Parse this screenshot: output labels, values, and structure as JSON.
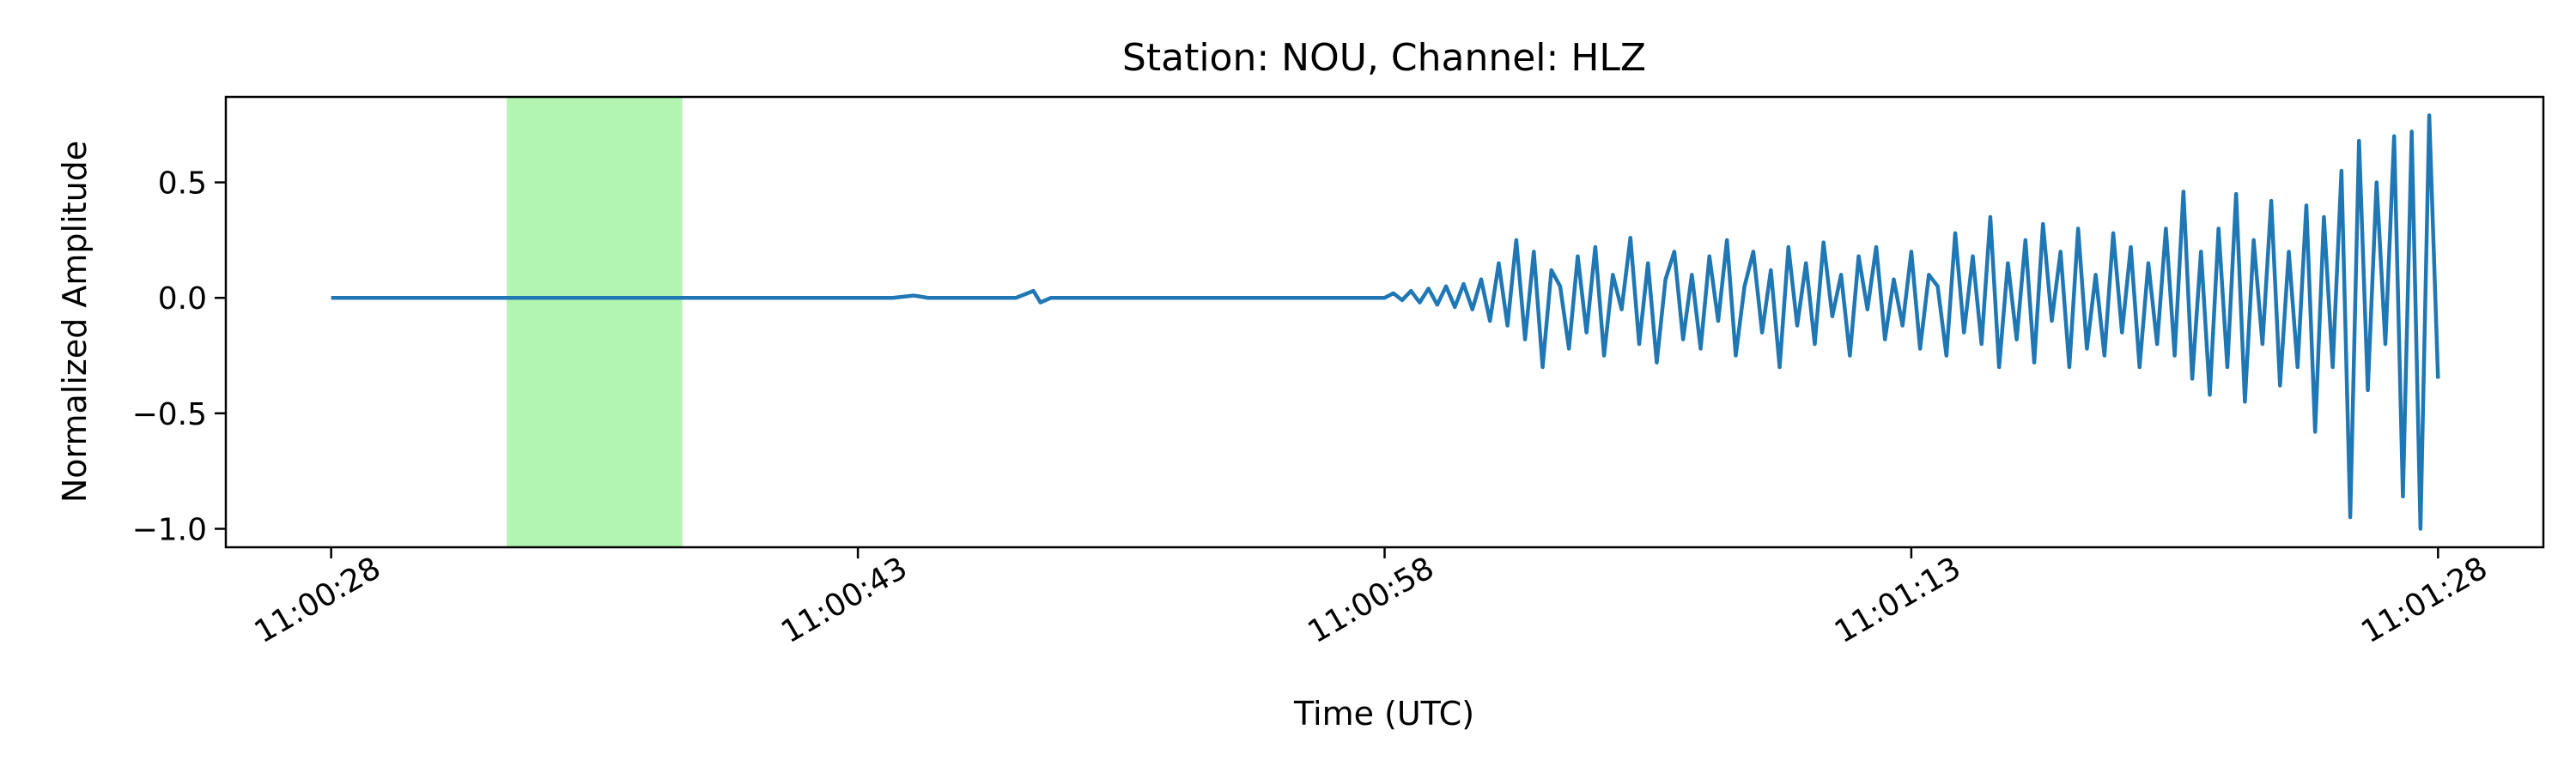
{
  "chart_data": {
    "type": "line",
    "title": "Station: NOU, Channel: HLZ",
    "xlabel": "Time (UTC)",
    "ylabel": "Normalized Amplitude",
    "color": "#1f77b4",
    "xlim": [
      39625,
      39691
    ],
    "ylim": [
      -1.08,
      0.87
    ],
    "xticks": [
      {
        "value": 39628,
        "label": "11:00:28"
      },
      {
        "value": 39643,
        "label": "11:00:43"
      },
      {
        "value": 39658,
        "label": "11:00:58"
      },
      {
        "value": 39673,
        "label": "11:01:13"
      },
      {
        "value": 39688,
        "label": "11:01:28"
      }
    ],
    "yticks": [
      {
        "value": -1.0,
        "label": "−1.0"
      },
      {
        "value": -0.5,
        "label": "−0.5"
      },
      {
        "value": 0.0,
        "label": "0.0"
      },
      {
        "value": 0.5,
        "label": "0.5"
      }
    ],
    "span": {
      "xlim": [
        39633,
        39638
      ],
      "color": "#b2f4b2"
    },
    "x": [
      39628,
      39630,
      39632,
      39634,
      39636,
      39638,
      39640,
      39642,
      39644,
      39644.6,
      39645,
      39646,
      39647.5,
      39648,
      39648.2,
      39648.5,
      39650,
      39652,
      39654,
      39656,
      39657.5,
      39658,
      39658.25,
      39658.5,
      39658.75,
      39659,
      39659.25,
      39659.5,
      39659.75,
      39660,
      39660.25,
      39660.5,
      39660.75,
      39661,
      39661.25,
      39661.5,
      39661.75,
      39662,
      39662.25,
      39662.5,
      39662.75,
      39663,
      39663.25,
      39663.5,
      39663.75,
      39664,
      39664.25,
      39664.5,
      39664.75,
      39665,
      39665.25,
      39665.5,
      39665.75,
      39666,
      39666.25,
      39666.5,
      39666.75,
      39667,
      39667.25,
      39667.5,
      39667.75,
      39668,
      39668.25,
      39668.5,
      39668.75,
      39669,
      39669.25,
      39669.5,
      39669.75,
      39670,
      39670.25,
      39670.5,
      39670.75,
      39671,
      39671.25,
      39671.5,
      39671.75,
      39672,
      39672.25,
      39672.5,
      39672.75,
      39673,
      39673.25,
      39673.5,
      39673.75,
      39674,
      39674.25,
      39674.5,
      39674.75,
      39675,
      39675.25,
      39675.5,
      39675.75,
      39676,
      39676.25,
      39676.5,
      39676.75,
      39677,
      39677.25,
      39677.5,
      39677.75,
      39678,
      39678.25,
      39678.5,
      39678.75,
      39679,
      39679.25,
      39679.5,
      39679.75,
      39680,
      39680.25,
      39680.5,
      39680.75,
      39681,
      39681.25,
      39681.5,
      39681.75,
      39682,
      39682.25,
      39682.5,
      39682.75,
      39683,
      39683.25,
      39683.5,
      39683.75,
      39684,
      39684.25,
      39684.5,
      39684.75,
      39685,
      39685.25,
      39685.5,
      39685.75,
      39686,
      39686.25,
      39686.5,
      39686.75,
      39687,
      39687.25,
      39687.5,
      39687.75,
      39688
    ],
    "values": [
      0,
      0,
      0,
      0,
      0,
      0,
      0,
      0,
      0,
      0.01,
      0,
      0,
      0,
      0.03,
      -0.02,
      0,
      0,
      0,
      0,
      0,
      0,
      0,
      0.02,
      -0.01,
      0.03,
      -0.02,
      0.04,
      -0.03,
      0.05,
      -0.04,
      0.06,
      -0.05,
      0.08,
      -0.1,
      0.15,
      -0.12,
      0.25,
      -0.18,
      0.2,
      -0.3,
      0.12,
      0.05,
      -0.22,
      0.18,
      -0.15,
      0.22,
      -0.25,
      0.1,
      -0.05,
      0.26,
      -0.2,
      0.15,
      -0.28,
      0.08,
      0.2,
      -0.18,
      0.1,
      -0.22,
      0.18,
      -0.1,
      0.25,
      -0.25,
      0.05,
      0.2,
      -0.15,
      0.12,
      -0.3,
      0.22,
      -0.12,
      0.15,
      -0.2,
      0.24,
      -0.08,
      0.1,
      -0.25,
      0.18,
      -0.05,
      0.22,
      -0.18,
      0.08,
      -0.12,
      0.2,
      -0.22,
      0.1,
      0.05,
      -0.25,
      0.28,
      -0.15,
      0.18,
      -0.2,
      0.35,
      -0.3,
      0.15,
      -0.18,
      0.25,
      -0.28,
      0.32,
      -0.1,
      0.2,
      -0.3,
      0.3,
      -0.22,
      0.1,
      -0.25,
      0.28,
      -0.15,
      0.22,
      -0.3,
      0.15,
      -0.2,
      0.3,
      -0.25,
      0.46,
      -0.35,
      0.2,
      -0.42,
      0.3,
      -0.3,
      0.45,
      -0.45,
      0.25,
      -0.2,
      0.42,
      -0.38,
      0.2,
      -0.3,
      0.4,
      -0.58,
      0.35,
      -0.3,
      0.55,
      -0.95,
      0.68,
      -0.4,
      0.5,
      -0.2,
      0.7,
      -0.86,
      0.72,
      -1.0,
      0.79,
      -0.35
    ]
  }
}
